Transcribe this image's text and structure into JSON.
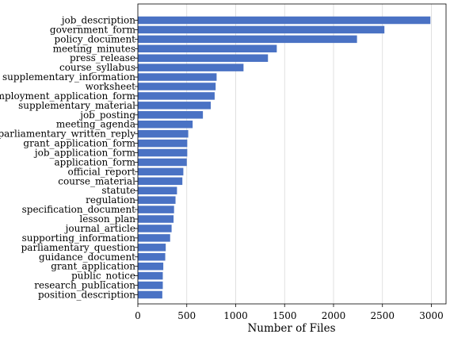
{
  "chart_data": {
    "type": "bar",
    "orientation": "horizontal",
    "title": "",
    "xlabel": "Number of Files",
    "ylabel": "",
    "xlim": [
      0,
      3150
    ],
    "xticks": [
      0,
      500,
      1000,
      1500,
      2000,
      2500,
      3000
    ],
    "grid": "vertical",
    "bar_color": "#4a72c4",
    "categories": [
      "job_description",
      "government_form",
      "policy_document",
      "meeting_minutes",
      "press_release",
      "course_syllabus",
      "supplementary_information",
      "worksheet",
      "employment_application_form",
      "supplementary_material",
      "job_posting",
      "meeting_agenda",
      "parliamentary_written_reply",
      "grant_application_form",
      "job_application_form",
      "application_form",
      "official_report",
      "course_material",
      "statute",
      "regulation",
      "specification_document",
      "lesson_plan",
      "journal_article",
      "supporting_information",
      "parliamentary_question",
      "guidance_document",
      "grant_application",
      "public_notice",
      "research_publication",
      "position_description"
    ],
    "values": [
      2990,
      2520,
      2240,
      1420,
      1330,
      1080,
      805,
      795,
      785,
      745,
      665,
      560,
      515,
      505,
      505,
      500,
      465,
      455,
      400,
      385,
      370,
      365,
      345,
      330,
      285,
      280,
      260,
      255,
      255,
      250
    ]
  }
}
